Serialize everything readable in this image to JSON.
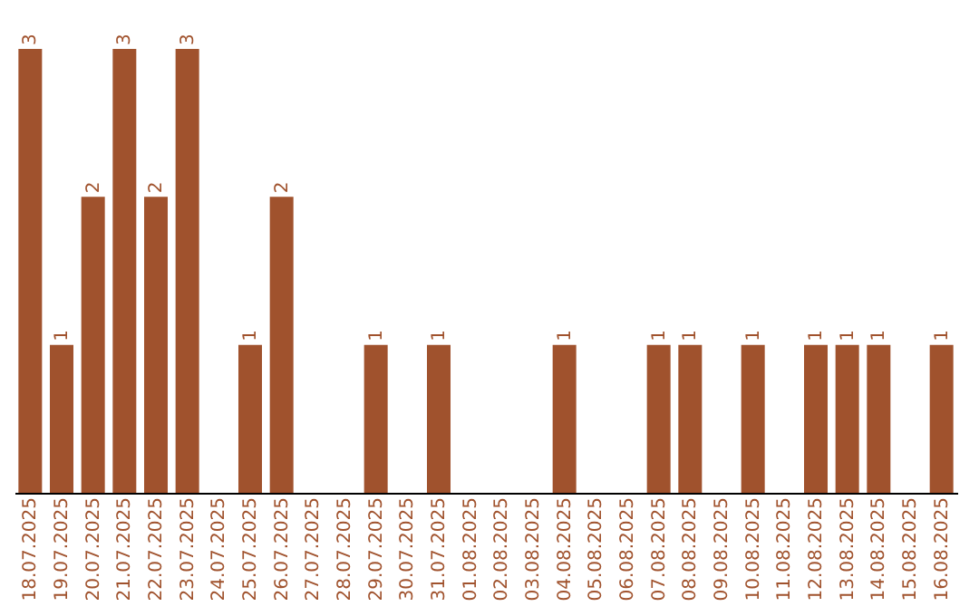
{
  "chart_data": {
    "type": "bar",
    "categories": [
      "18.07.2025",
      "19.07.2025",
      "20.07.2025",
      "21.07.2025",
      "22.07.2025",
      "23.07.2025",
      "24.07.2025",
      "25.07.2025",
      "26.07.2025",
      "27.07.2025",
      "28.07.2025",
      "29.07.2025",
      "30.07.2025",
      "31.07.2025",
      "01.08.2025",
      "02.08.2025",
      "03.08.2025",
      "04.08.2025",
      "05.08.2025",
      "06.08.2025",
      "07.08.2025",
      "08.08.2025",
      "09.08.2025",
      "10.08.2025",
      "11.08.2025",
      "12.08.2025",
      "13.08.2025",
      "14.08.2025",
      "15.08.2025",
      "16.08.2025"
    ],
    "values": [
      3,
      1,
      2,
      3,
      2,
      3,
      0,
      1,
      2,
      0,
      0,
      1,
      0,
      1,
      0,
      0,
      0,
      1,
      0,
      0,
      1,
      1,
      0,
      1,
      0,
      1,
      1,
      1,
      0,
      1
    ],
    "value_labels": [
      "3",
      "1",
      "2",
      "3",
      "2",
      "3",
      null,
      "1",
      "2",
      null,
      null,
      "1",
      null,
      "1",
      null,
      null,
      null,
      "1",
      null,
      null,
      "1",
      "1",
      null,
      "1",
      null,
      "1",
      "1",
      "1",
      null,
      "1"
    ],
    "color": "#a0522d",
    "grid": false
  }
}
